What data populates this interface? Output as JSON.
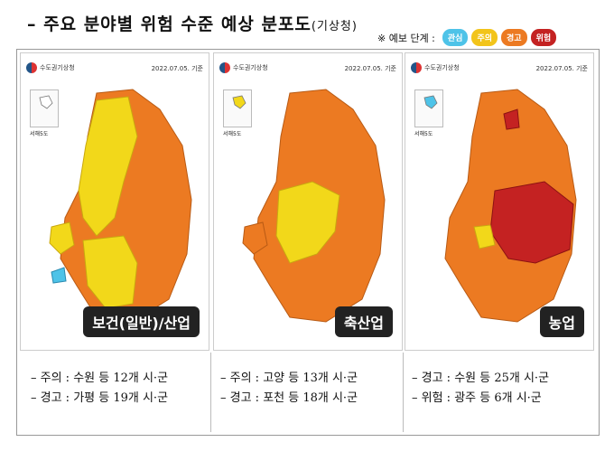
{
  "title": {
    "main": "– 주요 분야별 위험 수준 예상 분포도",
    "source": "(기상청)"
  },
  "legend": {
    "label": "※ 예보 단계 :",
    "levels": [
      {
        "name": "관심",
        "color": "#4ec3e8"
      },
      {
        "name": "주의",
        "color": "#f2c41a"
      },
      {
        "name": "경고",
        "color": "#ec7a22"
      },
      {
        "name": "위험",
        "color": "#c42222"
      }
    ]
  },
  "panels": [
    {
      "agency": "수도권기상청",
      "date": "2022.07.05. 기준",
      "inset_label": "서해5도",
      "sector": "보건(일반)/산업",
      "notes": [
        "– 주의 : 수원 등 12개 시·군",
        "– 경고 : 가평 등 19개 시·군"
      ]
    },
    {
      "agency": "수도권기상청",
      "date": "2022.07.05. 기준",
      "inset_label": "서해5도",
      "sector": "축산업",
      "notes": [
        "– 주의 : 고양 등 13개 시·군",
        "– 경고 : 포천 등 18개 시·군"
      ]
    },
    {
      "agency": "수도권기상청",
      "date": "2022.07.05. 기준",
      "inset_label": "서해5도",
      "sector": "농업",
      "notes": [
        "– 경고 : 수원 등 25개 시·군",
        "– 위험 : 광주 등 6개 시·군"
      ]
    }
  ]
}
